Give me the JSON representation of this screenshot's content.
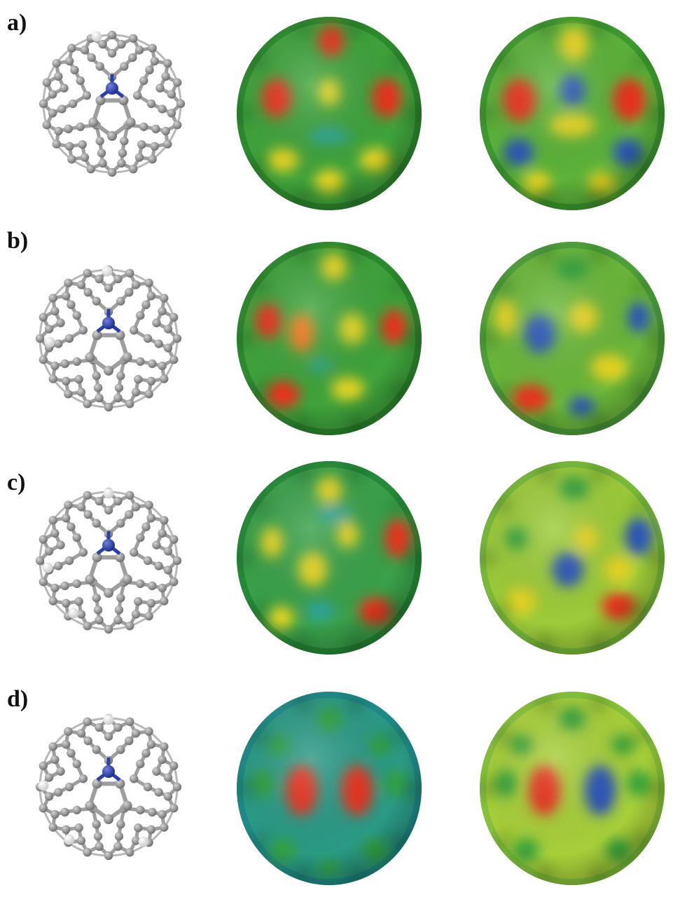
{
  "panels": [
    {
      "label": "a)",
      "hydrogens": [
        [
          -0.22,
          -0.96
        ]
      ],
      "map1": {
        "base": "#3fa33c",
        "rim": "#2d8a2e",
        "spots": [
          [
            0.02,
            -0.75,
            0.14,
            0.16,
            "red"
          ],
          [
            -0.57,
            -0.16,
            0.16,
            0.2,
            "red"
          ],
          [
            0.62,
            -0.16,
            0.16,
            0.2,
            "red"
          ],
          [
            0.0,
            -0.22,
            0.12,
            0.14,
            "yellow"
          ],
          [
            -0.5,
            0.48,
            0.17,
            0.12,
            "yellow"
          ],
          [
            0.5,
            0.48,
            0.17,
            0.12,
            "yellow"
          ],
          [
            0.0,
            0.7,
            0.16,
            0.12,
            "yellow"
          ],
          [
            0.0,
            0.23,
            0.22,
            0.08,
            "cyan"
          ]
        ]
      },
      "map2": {
        "base": "#5cb23a",
        "rim": "#3f9a2f",
        "spots": [
          [
            0.02,
            -0.72,
            0.16,
            0.18,
            "yellow"
          ],
          [
            -0.57,
            -0.14,
            0.18,
            0.22,
            "red"
          ],
          [
            0.62,
            -0.14,
            0.18,
            0.22,
            "red"
          ],
          [
            0.0,
            -0.24,
            0.14,
            0.16,
            "blue"
          ],
          [
            -0.58,
            0.4,
            0.16,
            0.14,
            "blue"
          ],
          [
            0.6,
            0.4,
            0.16,
            0.14,
            "blue"
          ],
          [
            -0.38,
            0.72,
            0.15,
            0.12,
            "yellow"
          ],
          [
            0.32,
            0.72,
            0.15,
            0.12,
            "yellow"
          ],
          [
            0.0,
            0.12,
            0.25,
            0.12,
            "yellow"
          ]
        ]
      }
    },
    {
      "label": "b)",
      "hydrogens": [
        [
          -0.02,
          -0.96
        ],
        [
          -0.84,
          0.05
        ]
      ],
      "map1": {
        "base": "#3fa33c",
        "rim": "#2d8a2e",
        "spots": [
          [
            0.05,
            -0.74,
            0.14,
            0.14,
            "yellow"
          ],
          [
            -0.66,
            -0.18,
            0.14,
            0.18,
            "red"
          ],
          [
            0.7,
            -0.12,
            0.14,
            0.18,
            "red"
          ],
          [
            -0.3,
            -0.06,
            0.14,
            0.2,
            "orange"
          ],
          [
            0.25,
            -0.1,
            0.14,
            0.16,
            "yellow"
          ],
          [
            -0.5,
            0.58,
            0.18,
            0.14,
            "red"
          ],
          [
            0.2,
            0.52,
            0.18,
            0.12,
            "yellow"
          ],
          [
            -0.1,
            0.28,
            0.12,
            0.06,
            "cyan"
          ]
        ]
      },
      "map2": {
        "base": "#6bb73a",
        "rim": "#4fa03a",
        "spots": [
          [
            -0.35,
            -0.05,
            0.17,
            0.2,
            "blue"
          ],
          [
            0.72,
            -0.22,
            0.12,
            0.16,
            "blue"
          ],
          [
            0.12,
            -0.22,
            0.16,
            0.16,
            "yellow"
          ],
          [
            -0.72,
            -0.22,
            0.12,
            0.18,
            "yellow"
          ],
          [
            -0.45,
            0.62,
            0.2,
            0.14,
            "red"
          ],
          [
            0.1,
            0.7,
            0.14,
            0.1,
            "blue"
          ],
          [
            0.0,
            -0.72,
            0.18,
            0.12,
            "green"
          ],
          [
            0.4,
            0.3,
            0.2,
            0.14,
            "yellow"
          ]
        ]
      }
    },
    {
      "label": "c)",
      "hydrogens": [
        [
          0.0,
          -0.96
        ],
        [
          -0.87,
          0.1
        ],
        [
          -0.5,
          0.75
        ]
      ],
      "map1": {
        "base": "#3aa14a",
        "rim": "#268a38",
        "spots": [
          [
            0.0,
            -0.7,
            0.14,
            0.14,
            "yellow"
          ],
          [
            0.74,
            -0.2,
            0.14,
            0.2,
            "red"
          ],
          [
            0.5,
            0.55,
            0.18,
            0.14,
            "red"
          ],
          [
            -0.18,
            0.12,
            0.16,
            0.18,
            "yellow"
          ],
          [
            -0.62,
            -0.16,
            0.12,
            0.16,
            "yellow"
          ],
          [
            -0.52,
            0.62,
            0.14,
            0.12,
            "yellow"
          ],
          [
            0.2,
            -0.24,
            0.12,
            0.14,
            "yellow"
          ],
          [
            0.05,
            -0.45,
            0.18,
            0.08,
            "cyan"
          ],
          [
            -0.1,
            0.55,
            0.16,
            0.1,
            "cyan"
          ]
        ]
      },
      "map2": {
        "base": "#9ccb3a",
        "rim": "#7aba3a",
        "spots": [
          [
            0.72,
            -0.22,
            0.15,
            0.2,
            "blue"
          ],
          [
            -0.05,
            0.12,
            0.17,
            0.18,
            "blue"
          ],
          [
            0.5,
            0.5,
            0.18,
            0.14,
            "red"
          ],
          [
            0.02,
            -0.72,
            0.16,
            0.12,
            "green"
          ],
          [
            0.15,
            -0.2,
            0.14,
            0.14,
            "yellow"
          ],
          [
            -0.55,
            0.45,
            0.16,
            0.14,
            "yellow"
          ],
          [
            0.5,
            0.12,
            0.16,
            0.14,
            "yellow"
          ],
          [
            -0.6,
            -0.2,
            0.12,
            0.12,
            "green"
          ]
        ]
      }
    },
    {
      "label": "d)",
      "hydrogens": [
        [
          0.0,
          -0.96
        ],
        [
          -0.93,
          -0.02
        ],
        [
          -0.56,
          0.75
        ],
        [
          0.5,
          0.78
        ]
      ],
      "map1": {
        "base": "#2b9a86",
        "rim": "#1f8a88",
        "spots": [
          [
            -0.3,
            0.02,
            0.17,
            0.26,
            "red"
          ],
          [
            0.3,
            0.02,
            0.17,
            0.26,
            "red"
          ],
          [
            0.0,
            -0.72,
            0.14,
            0.12,
            "green"
          ],
          [
            -0.72,
            -0.05,
            0.12,
            0.14,
            "green"
          ],
          [
            0.72,
            -0.05,
            0.12,
            0.14,
            "green"
          ],
          [
            -0.5,
            0.64,
            0.14,
            0.12,
            "green"
          ],
          [
            0.5,
            0.64,
            0.14,
            0.12,
            "green"
          ],
          [
            0.0,
            0.82,
            0.14,
            0.08,
            "green"
          ],
          [
            -0.55,
            -0.45,
            0.12,
            0.1,
            "green"
          ],
          [
            0.55,
            -0.45,
            0.12,
            0.1,
            "green"
          ]
        ]
      },
      "map2": {
        "base": "#a8cf3a",
        "rim": "#88c23a",
        "spots": [
          [
            -0.3,
            0.02,
            0.17,
            0.26,
            "red"
          ],
          [
            0.3,
            0.02,
            0.17,
            0.26,
            "blue"
          ],
          [
            0.0,
            -0.72,
            0.14,
            0.12,
            "green"
          ],
          [
            -0.72,
            -0.05,
            0.12,
            0.14,
            "green"
          ],
          [
            0.72,
            -0.05,
            0.12,
            0.14,
            "green"
          ],
          [
            -0.5,
            0.64,
            0.14,
            0.12,
            "green"
          ],
          [
            0.5,
            0.64,
            0.14,
            0.12,
            "green"
          ],
          [
            -0.55,
            -0.45,
            0.12,
            0.1,
            "green"
          ],
          [
            0.55,
            -0.45,
            0.12,
            0.1,
            "green"
          ]
        ]
      }
    }
  ],
  "colors": {
    "carbon": "#8a8a8a",
    "bond": "#9e9e9e",
    "nitrogen": "#2a3fa8",
    "hydrogen": "#f2f2f2",
    "red": "#e8321f",
    "orange": "#f07a1c",
    "yellow": "#e6d423",
    "green": "#33a03a",
    "cyan": "#2fa5a0",
    "blue": "#2a55b8"
  }
}
